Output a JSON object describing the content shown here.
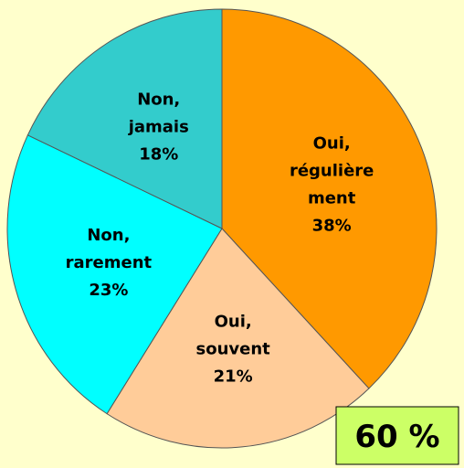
{
  "chart_data": {
    "type": "pie",
    "categories": [
      "Oui, régulière ment",
      "Oui, souvent",
      "Non, rarement",
      "Non, jamais"
    ],
    "values": [
      38,
      21,
      23,
      18
    ],
    "value_labels": [
      "38%",
      "21%",
      "23%",
      "18%"
    ],
    "colors": [
      "#ff9900",
      "#ffcc99",
      "#00ffff",
      "#33cccc"
    ],
    "annotation": "60 %"
  }
}
